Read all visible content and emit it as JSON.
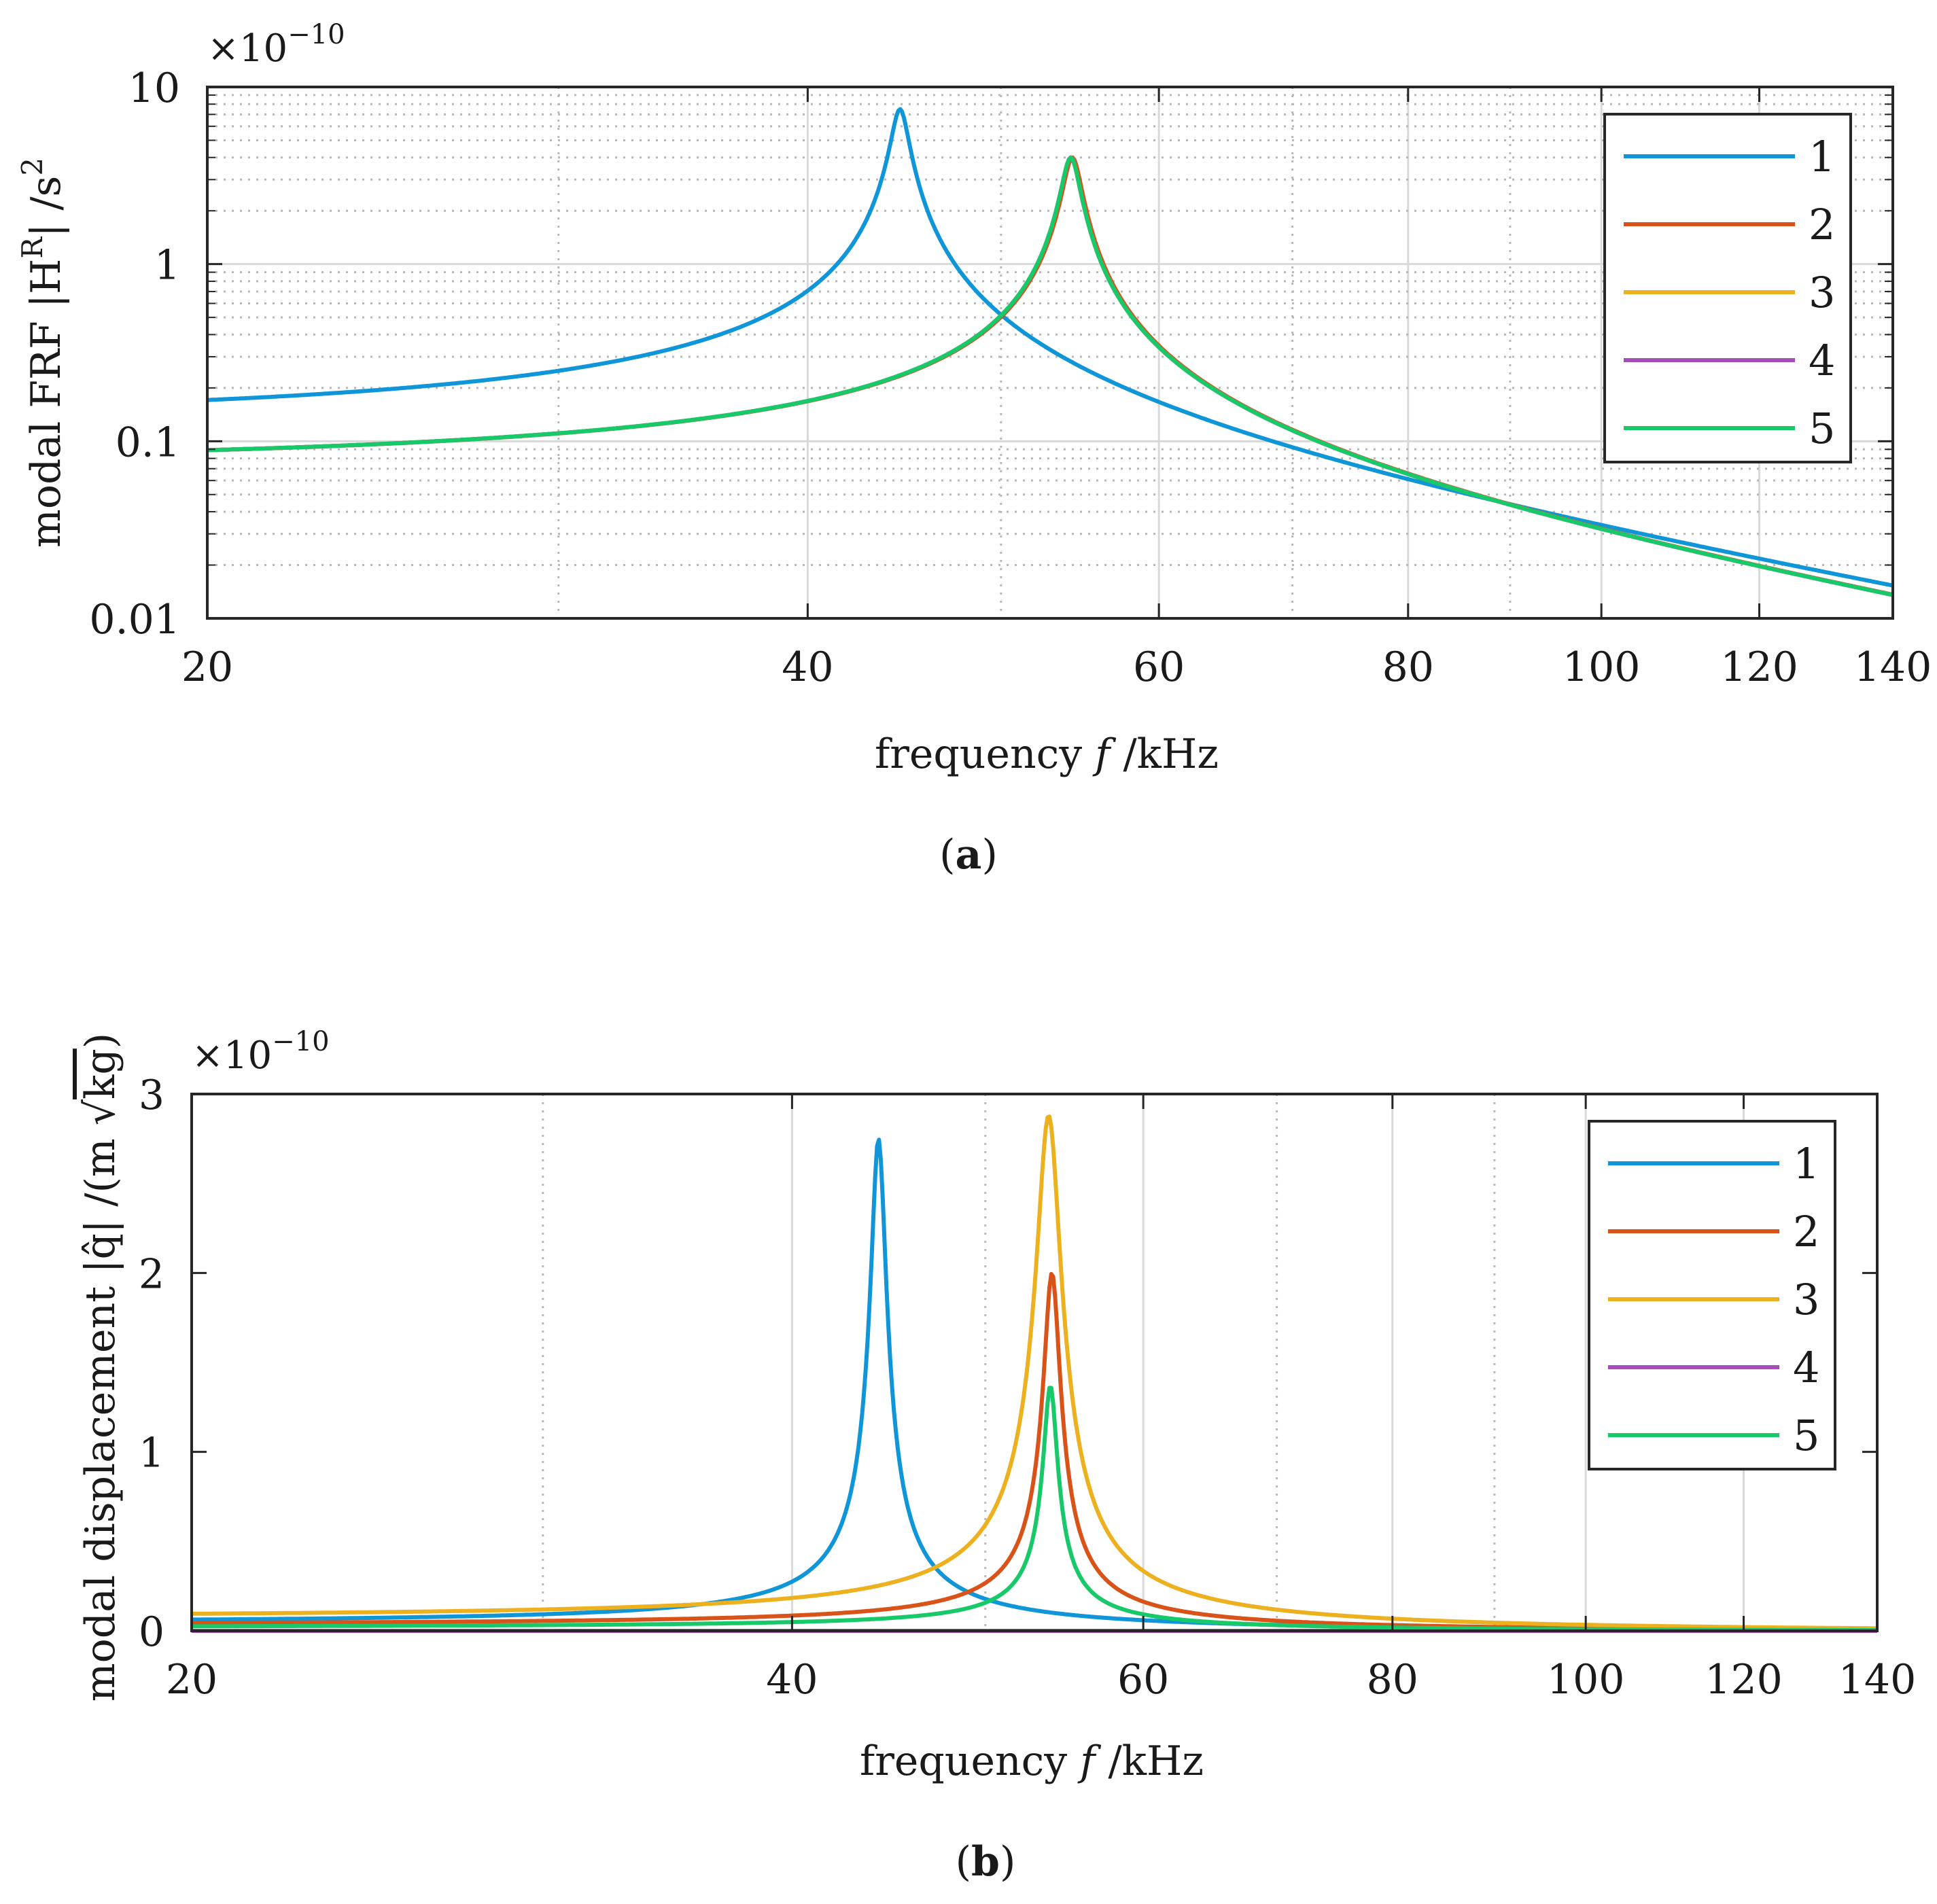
{
  "chart_data": [
    {
      "id": "a",
      "type": "line",
      "yscale": "log",
      "xscale": "log",
      "multiplier": "×10",
      "multiplier_exp": "−10",
      "xlabel": "frequency f /kHz",
      "ylabel": "modal FRF |H^R| /s^2",
      "ylabel_main": "modal FRF |H",
      "ylabel_sup": "R",
      "ylabel_tail": "| /s",
      "ylabel_sup2": "2",
      "caption_bold": "a",
      "xlim": [
        20,
        140
      ],
      "ylim": [
        0.01,
        10
      ],
      "xticks": [
        20,
        40,
        60,
        80,
        100,
        120,
        140
      ],
      "xtick_labels": [
        "20",
        "40",
        "60",
        "80",
        "100",
        "120",
        "140"
      ],
      "yticks": [
        0.01,
        0.1,
        1,
        10
      ],
      "ytick_labels": [
        "0.01",
        "0.1",
        "1",
        "10"
      ],
      "grid": true,
      "legend_position": "top-right",
      "series": [
        {
          "name": "1",
          "color": "#0f96d8",
          "f0": 44.5,
          "h": 7.5,
          "q": 55,
          "low": 0.13
        },
        {
          "name": "2",
          "color": "#d95319",
          "f0": 54.3,
          "h": 4.0,
          "q": 52,
          "low": 0.095
        },
        {
          "name": "3",
          "color": "#edb120",
          "f0": 54.2,
          "h": 4.0,
          "q": 52,
          "low": 0.095
        },
        {
          "name": "4",
          "color": "#a64db8",
          "f0": 54.2,
          "h": 4.0,
          "q": 52,
          "low": 0.095
        },
        {
          "name": "5",
          "color": "#18c96a",
          "f0": 54.2,
          "h": 4.0,
          "q": 52,
          "low": 0.095
        }
      ]
    },
    {
      "id": "b",
      "type": "line",
      "yscale": "linear",
      "xscale": "log",
      "multiplier": "×10",
      "multiplier_exp": "−10",
      "xlabel": "frequency f /kHz",
      "ylabel": "modal displacement |q̂| /(m √kg)",
      "ylabel_main": "modal displacement |q̂| /(m ",
      "ylabel_root": "kg",
      "ylabel_close": ")",
      "caption_bold": "b",
      "xlim": [
        20,
        140
      ],
      "ylim": [
        0,
        3
      ],
      "xticks": [
        20,
        40,
        60,
        80,
        100,
        120,
        140
      ],
      "xtick_labels": [
        "20",
        "40",
        "60",
        "80",
        "100",
        "120",
        "140"
      ],
      "yticks": [
        0,
        1,
        2,
        3
      ],
      "ytick_labels": [
        "0",
        "1",
        "2",
        "3"
      ],
      "grid": true,
      "legend_position": "top-right",
      "series": [
        {
          "name": "1",
          "color": "#0f96d8",
          "f0": 44.2,
          "peak": 2.75,
          "q": 55
        },
        {
          "name": "2",
          "color": "#d95319",
          "f0": 54.0,
          "peak": 2.0,
          "q": 52
        },
        {
          "name": "3",
          "color": "#edb120",
          "f0": 53.8,
          "peak": 2.88,
          "q": 35
        },
        {
          "name": "4",
          "color": "#a64db8",
          "f0": 54.0,
          "peak": 0.0,
          "q": 52
        },
        {
          "name": "5",
          "color": "#18c96a",
          "f0": 53.9,
          "peak": 1.37,
          "q": 62
        }
      ]
    }
  ]
}
